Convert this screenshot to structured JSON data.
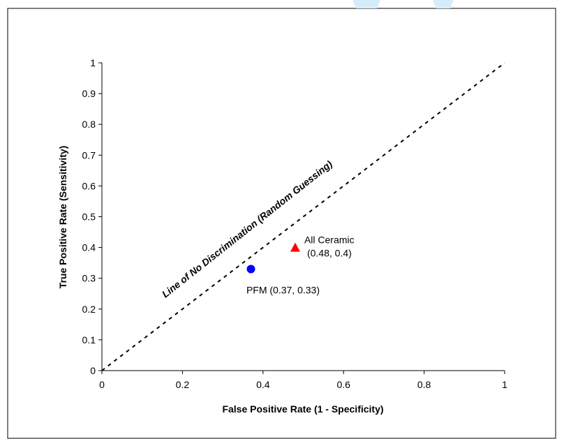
{
  "chart_data": {
    "type": "scatter",
    "title": "",
    "xlabel": "False Positive Rate (1 - Specificity)",
    "ylabel": "True Positive Rate (Sensitivity)",
    "xlim": [
      0,
      1
    ],
    "ylim": [
      0,
      1
    ],
    "x_ticks": [
      "0",
      "0.2",
      "0.4",
      "0.6",
      "0.8",
      "1"
    ],
    "y_ticks": [
      "0",
      "0.1",
      "0.2",
      "0.3",
      "0.4",
      "0.5",
      "0.6",
      "0.7",
      "0.8",
      "0.9",
      "1"
    ],
    "grid": false,
    "reference_line": {
      "label": "Line of No Discrimination (Random Guessing)",
      "style": "dashed",
      "color": "#000000",
      "points": [
        [
          0,
          0
        ],
        [
          1,
          1
        ]
      ]
    },
    "points": [
      {
        "label": "PFM (0.37, 0.33)",
        "x": 0.37,
        "y": 0.33,
        "marker": "circle",
        "color": "#0000ff"
      },
      {
        "label_lines": [
          "All Ceramic",
          "(0.48, 0.4)"
        ],
        "x": 0.48,
        "y": 0.4,
        "marker": "triangle",
        "color": "#ff0000"
      }
    ]
  }
}
